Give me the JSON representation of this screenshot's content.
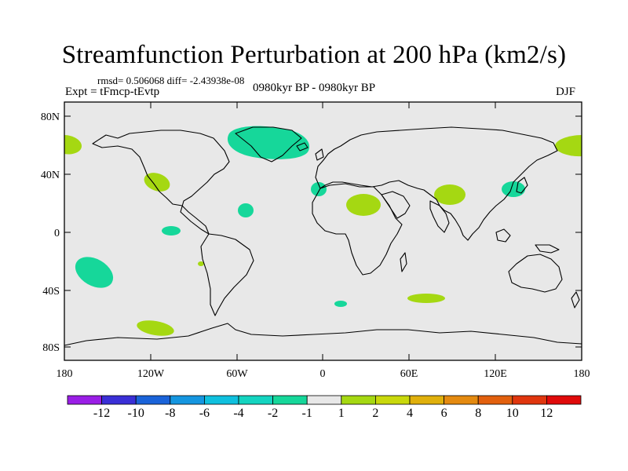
{
  "title": "Streamfunction Perturbation at 200 hPa (km2/s)",
  "stats_line": "rmsd= 0.506068 diff= -2.43938e-08",
  "expt_line": "Expt = tFmcp-tEvtp",
  "period_line": "0980kyr BP - 0980kyr BP",
  "season": "DJF",
  "lat_ticks": [
    "80N",
    "40N",
    "0",
    "40S",
    "80S"
  ],
  "lon_ticks": [
    "180",
    "120W",
    "60W",
    "0",
    "60E",
    "120E",
    "180"
  ],
  "colorbar": {
    "labels": [
      "-12",
      "-10",
      "-8",
      "-6",
      "-4",
      "-2",
      "-1",
      "1",
      "2",
      "4",
      "6",
      "8",
      "10",
      "12"
    ],
    "colors": [
      "#9a1ee6",
      "#3a2fd6",
      "#1a63d9",
      "#1596e0",
      "#0fc0de",
      "#14d4c0",
      "#16d79a",
      "#e8e8e8",
      "#a5d812",
      "#c9d80c",
      "#e0b00c",
      "#e48a10",
      "#e2600e",
      "#e0360e",
      "#e00a0a"
    ]
  },
  "colors": {
    "map_background": "#e8e8e8",
    "negative_fill": "#16d79a",
    "positive_fill": "#a5d812"
  },
  "anomalies": [
    {
      "name": "greenland-negative",
      "lon": -40,
      "lat": 69,
      "sign": "negative"
    },
    {
      "name": "atlantic-negative",
      "lon": -53,
      "lat": 17,
      "sign": "negative"
    },
    {
      "name": "east-pacific-negative",
      "lon": -110,
      "lat": 2,
      "sign": "negative"
    },
    {
      "name": "south-pacific-negative",
      "lon": -163,
      "lat": -29,
      "sign": "negative"
    },
    {
      "name": "west-africa-negative",
      "lon": -3,
      "lat": 28,
      "sign": "negative"
    },
    {
      "name": "japan-negative",
      "lon": 136,
      "lat": 30,
      "sign": "negative"
    },
    {
      "name": "south-atlantic-negative",
      "lon": 13,
      "lat": -50,
      "sign": "negative"
    },
    {
      "name": "alaska-west-positive",
      "lon": -176,
      "lat": 60,
      "sign": "positive"
    },
    {
      "name": "kamchatka-positive",
      "lon": 175,
      "lat": 58,
      "sign": "positive"
    },
    {
      "name": "california-positive",
      "lon": -116,
      "lat": 35,
      "sign": "positive"
    },
    {
      "name": "sahara-positive",
      "lon": 34,
      "lat": 20,
      "sign": "positive"
    },
    {
      "name": "india-positive",
      "lon": 90,
      "lat": 25,
      "sign": "positive"
    },
    {
      "name": "southern-ocean-positive",
      "lon": 70,
      "lat": -47,
      "sign": "positive"
    },
    {
      "name": "south-pacific-positive",
      "lon": -128,
      "lat": -65,
      "sign": "positive"
    },
    {
      "name": "small-pacific-positive",
      "lon": -88,
      "lat": -22,
      "sign": "positive"
    }
  ]
}
